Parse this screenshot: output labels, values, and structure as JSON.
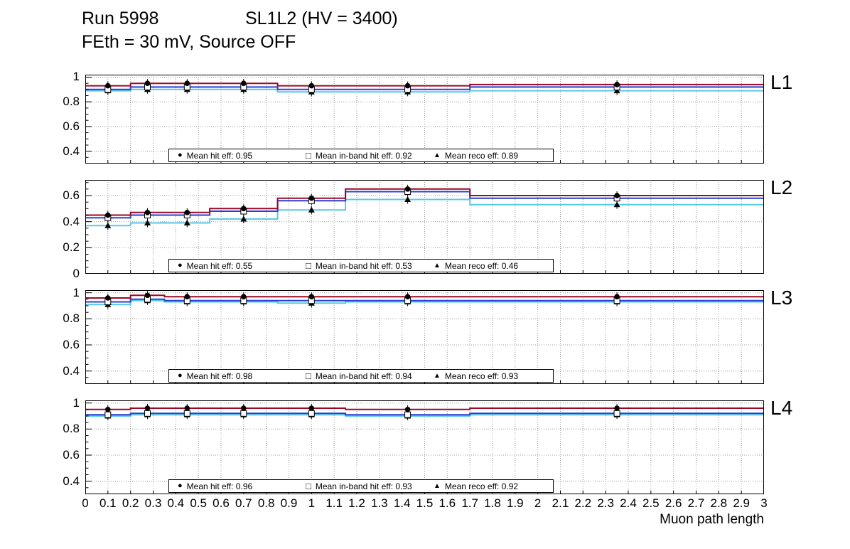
{
  "header": {
    "run": "Run 5998",
    "config": "SL1L2 (HV = 3400)",
    "subtitle": "FEth = 30 mV, Source OFF"
  },
  "chart_data": {
    "type": "line",
    "subtype": "step-histogram-efficiency",
    "title": "Run 5998 SL1L2 (HV = 3400) FEth = 30 mV, Source OFF",
    "grid": "dotted",
    "legend_position": "bottom-center-inside",
    "x": {
      "label": "Muon path length",
      "min": 0,
      "max": 3,
      "tick_step": 0.1,
      "tick_labels": [
        "0",
        "0.1",
        "0.2",
        "0.3",
        "0.4",
        "0.5",
        "0.6",
        "0.7",
        "0.8",
        "0.9",
        "1",
        "1.1",
        "1.2",
        "1.3",
        "1.4",
        "1.5",
        "1.6",
        "1.7",
        "1.8",
        "1.9",
        "2",
        "2.1",
        "2.2",
        "2.3",
        "2.4",
        "2.5",
        "2.6",
        "2.7",
        "2.8",
        "2.9",
        "3"
      ]
    },
    "bin_edges": [
      0,
      0.2,
      0.35,
      0.55,
      0.85,
      1.15,
      1.7,
      3.0
    ],
    "series_names": {
      "hit": "Mean hit eff",
      "inband": "Mean in-band hit eff",
      "reco": "Mean reco eff"
    },
    "legend_markers": {
      "hit": "●",
      "inband": "□",
      "reco": "▲"
    },
    "colors": {
      "hit": "#9c0824",
      "inband": "#2a3fd4",
      "reco": "#59c8ea",
      "marker": "#000000"
    },
    "panels": [
      {
        "layer": "L1",
        "ylim": [
          0.3,
          1.02
        ],
        "yticks": [
          {
            "v": 1,
            "label": "1"
          },
          {
            "v": 0.8,
            "label": "0.8"
          },
          {
            "v": 0.6,
            "label": "0.6"
          },
          {
            "v": 0.4,
            "label": "0.4"
          }
        ],
        "series": {
          "hit": [
            0.93,
            0.95,
            0.95,
            0.95,
            0.93,
            0.93,
            0.94
          ],
          "inband": [
            0.9,
            0.92,
            0.92,
            0.92,
            0.9,
            0.9,
            0.92
          ],
          "reco": [
            0.89,
            0.9,
            0.9,
            0.9,
            0.88,
            0.88,
            0.89
          ]
        },
        "legend": {
          "hit": "Mean hit  eff: 0.95",
          "inband": "Mean in-band hit eff: 0.92",
          "reco": "Mean reco eff: 0.89"
        }
      },
      {
        "layer": "L2",
        "ylim": [
          0,
          0.72
        ],
        "yticks": [
          {
            "v": 0.6,
            "label": "0.6"
          },
          {
            "v": 0.4,
            "label": "0.4"
          },
          {
            "v": 0.2,
            "label": "0.2"
          },
          {
            "v": 0,
            "label": "0"
          }
        ],
        "series": {
          "hit": [
            0.45,
            0.47,
            0.47,
            0.5,
            0.58,
            0.65,
            0.6
          ],
          "inband": [
            0.43,
            0.45,
            0.45,
            0.48,
            0.56,
            0.63,
            0.58
          ],
          "reco": [
            0.37,
            0.39,
            0.39,
            0.42,
            0.49,
            0.57,
            0.53
          ]
        },
        "legend": {
          "hit": "Mean hit  eff: 0.55",
          "inband": "Mean in-band hit eff: 0.53",
          "reco": "Mean reco eff: 0.46"
        }
      },
      {
        "layer": "L3",
        "ylim": [
          0.3,
          1.02
        ],
        "yticks": [
          {
            "v": 1,
            "label": "1"
          },
          {
            "v": 0.8,
            "label": "0.8"
          },
          {
            "v": 0.6,
            "label": "0.6"
          },
          {
            "v": 0.4,
            "label": "0.4"
          }
        ],
        "series": {
          "hit": [
            0.96,
            0.98,
            0.97,
            0.97,
            0.97,
            0.97,
            0.97
          ],
          "inband": [
            0.93,
            0.95,
            0.94,
            0.94,
            0.94,
            0.94,
            0.94
          ],
          "reco": [
            0.91,
            0.94,
            0.93,
            0.93,
            0.92,
            0.93,
            0.93
          ]
        },
        "legend": {
          "hit": "Mean hit  eff: 0.98",
          "inband": "Mean in-band hit eff: 0.94",
          "reco": "Mean reco eff: 0.93"
        }
      },
      {
        "layer": "L4",
        "ylim": [
          0.3,
          1.02
        ],
        "yticks": [
          {
            "v": 1,
            "label": "1"
          },
          {
            "v": 0.8,
            "label": "0.8"
          },
          {
            "v": 0.6,
            "label": "0.6"
          },
          {
            "v": 0.4,
            "label": "0.4"
          }
        ],
        "series": {
          "hit": [
            0.95,
            0.96,
            0.96,
            0.96,
            0.96,
            0.95,
            0.96
          ],
          "inband": [
            0.91,
            0.92,
            0.92,
            0.92,
            0.92,
            0.91,
            0.92
          ],
          "reco": [
            0.9,
            0.91,
            0.91,
            0.91,
            0.91,
            0.9,
            0.91
          ]
        },
        "legend": {
          "hit": "Mean hit  eff: 0.96",
          "inband": "Mean in-band hit eff: 0.93",
          "reco": "Mean reco eff: 0.92"
        }
      }
    ]
  }
}
